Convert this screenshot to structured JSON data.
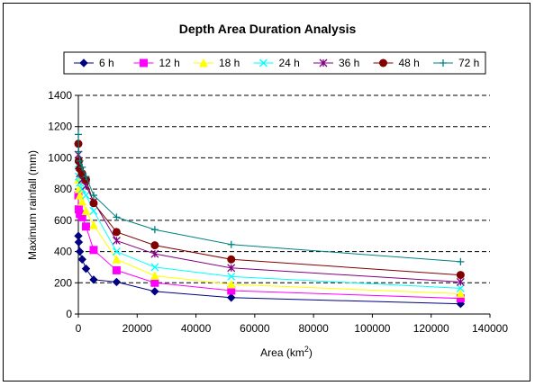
{
  "chart_data": {
    "type": "line",
    "title": "Depth Area Duration Analysis",
    "xlabel": "Area (km²)",
    "ylabel": "Maximum rainfall (mm)",
    "xlim": [
      0,
      140000
    ],
    "ylim": [
      0,
      1400
    ],
    "xticks": [
      "0",
      "20000",
      "40000",
      "60000",
      "80000",
      "100000",
      "120000",
      "140000"
    ],
    "yticks": [
      "0",
      "200",
      "400",
      "600",
      "800",
      "1000",
      "1200",
      "1400"
    ],
    "grid": "horizontal dashed",
    "legend_position": "top",
    "series": [
      {
        "name": "6 h",
        "color": "#000080",
        "marker": "diamond",
        "x": [
          0,
          130,
          500,
          1300,
          2600,
          5200,
          13000,
          26000,
          52000,
          130000
        ],
        "y": [
          500,
          460,
          400,
          350,
          290,
          220,
          205,
          145,
          105,
          65
        ]
      },
      {
        "name": "12 h",
        "color": "#FF00FF",
        "marker": "square",
        "x": [
          0,
          130,
          500,
          1300,
          2600,
          5200,
          13000,
          26000,
          52000,
          130000
        ],
        "y": [
          760,
          670,
          640,
          620,
          560,
          410,
          280,
          200,
          150,
          100
        ]
      },
      {
        "name": "18 h",
        "color": "#FFFF00",
        "marker": "triangle",
        "x": [
          0,
          130,
          500,
          1300,
          2600,
          5200,
          13000,
          26000,
          52000,
          130000
        ],
        "y": [
          860,
          800,
          760,
          720,
          660,
          570,
          350,
          245,
          190,
          130
        ]
      },
      {
        "name": "24 h",
        "color": "#00FFFF",
        "marker": "x",
        "x": [
          0,
          130,
          500,
          1300,
          2600,
          5200,
          13000,
          26000,
          52000,
          130000
        ],
        "y": [
          960,
          880,
          840,
          800,
          760,
          660,
          400,
          300,
          240,
          165
        ]
      },
      {
        "name": "36 h",
        "color": "#800080",
        "marker": "star",
        "x": [
          0,
          130,
          500,
          1300,
          2600,
          5200,
          13000,
          26000,
          52000,
          130000
        ],
        "y": [
          1020,
          950,
          900,
          860,
          820,
          720,
          470,
          385,
          295,
          205
        ]
      },
      {
        "name": "48 h",
        "color": "#800000",
        "marker": "circle",
        "x": [
          0,
          130,
          500,
          1300,
          2600,
          5200,
          13000,
          26000,
          52000,
          130000
        ],
        "y": [
          1090,
          980,
          930,
          900,
          860,
          710,
          525,
          440,
          350,
          250
        ]
      },
      {
        "name": "72 h",
        "color": "#008080",
        "marker": "plus",
        "x": [
          0,
          130,
          500,
          1300,
          2600,
          5200,
          13000,
          26000,
          52000,
          130000
        ],
        "y": [
          1150,
          1040,
          980,
          940,
          880,
          760,
          620,
          540,
          445,
          335
        ]
      }
    ]
  }
}
